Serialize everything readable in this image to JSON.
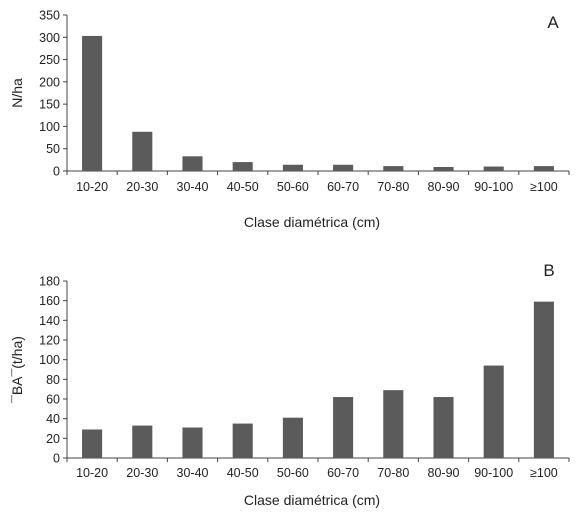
{
  "chart_data": [
    {
      "type": "bar",
      "panel_label": "A",
      "categories": [
        "10-20",
        "20-30",
        "30-40",
        "40-50",
        "50-60",
        "60-70",
        "70-80",
        "80-90",
        "90-100",
        "≥100"
      ],
      "values": [
        303,
        88,
        33,
        20,
        14,
        14,
        11,
        9,
        10,
        11
      ],
      "xlabel": "Clase diamétrica (cm)",
      "ylabel": "N/ha",
      "ylim": [
        0,
        350
      ],
      "yticks": [
        "0",
        "50",
        "100",
        "150",
        "200",
        "250",
        "300",
        "350"
      ],
      "grid": false,
      "bar_color": "#5b5b5b"
    },
    {
      "type": "bar",
      "panel_label": "B",
      "categories": [
        "10-20",
        "20-30",
        "30-40",
        "40-50",
        "50-60",
        "60-70",
        "70-80",
        "80-90",
        "90-100",
        "≥100"
      ],
      "values": [
        29,
        33,
        31,
        35,
        41,
        62,
        69,
        62,
        94,
        159
      ],
      "xlabel": "Clase diamétrica (cm)",
      "ylabel": "¯BA¯(t/ha)",
      "ylim": [
        0,
        180
      ],
      "yticks": [
        "0",
        "20",
        "40",
        "60",
        "80",
        "100",
        "120",
        "140",
        "160",
        "180"
      ],
      "grid": false,
      "bar_color": "#5b5b5b"
    }
  ]
}
